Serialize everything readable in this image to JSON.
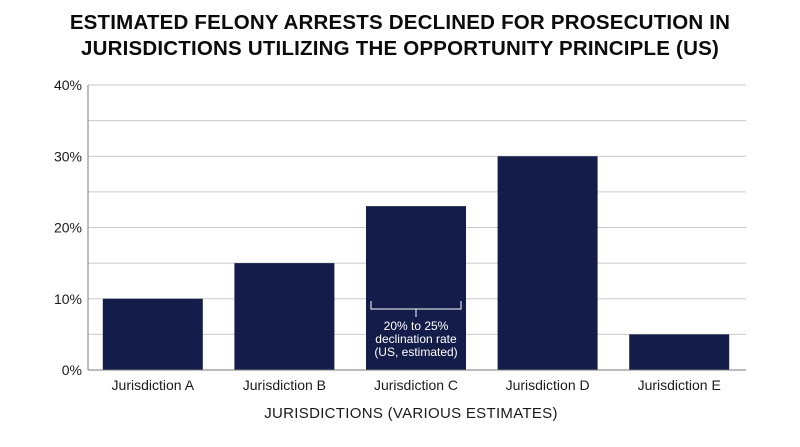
{
  "chart_data": {
    "type": "bar",
    "title_lines": [
      "ESTIMATED FELONY ARRESTS DECLINED FOR PROSECUTION IN",
      "JURISDICTIONS UTILIZING THE OPPORTUNITY PRINCIPLE (US)"
    ],
    "categories": [
      "Jurisdiction A",
      "Jurisdiction B",
      "Jurisdiction C",
      "Jurisdiction D",
      "Jurisdiction E"
    ],
    "values": [
      10,
      15,
      23,
      30,
      5
    ],
    "xlabel": "JURISDICTIONS (VARIOUS ESTIMATES)",
    "ylabel": "",
    "ylim": [
      0,
      40
    ],
    "yticks": [
      "0%",
      "10%",
      "20%",
      "30%",
      "40%"
    ],
    "grid": true,
    "bar_color": "#141c4a",
    "annotation": {
      "category": "Jurisdiction C",
      "lines": [
        "20% to 25%",
        "declination rate",
        "(US, estimated)"
      ]
    }
  }
}
